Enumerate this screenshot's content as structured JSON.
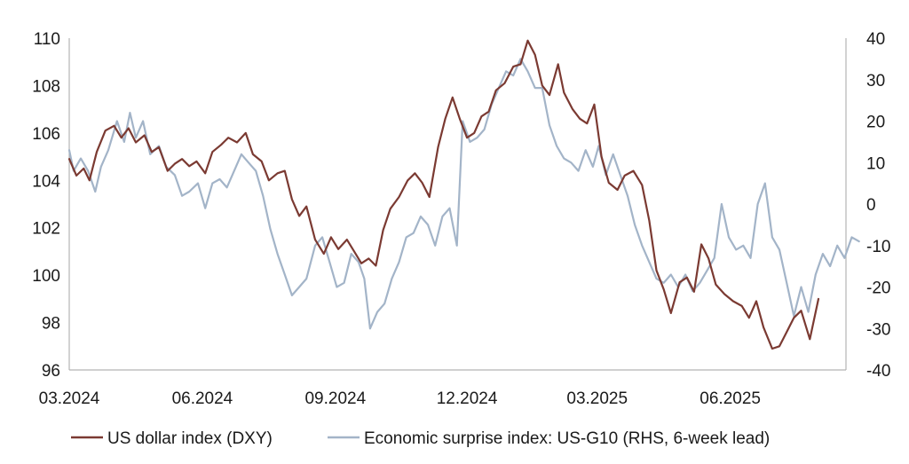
{
  "chart_data": {
    "type": "line",
    "title": "",
    "xlabel": "",
    "ylabel": "",
    "ylabel_right": "",
    "x_ticks": [
      "03.2024",
      "06.2024",
      "09.2024",
      "12.2024",
      "03.2025",
      "06.2025"
    ],
    "x_tick_dates": [
      "2024-03-01",
      "2024-06-01",
      "2024-09-01",
      "2024-12-01",
      "2025-03-01",
      "2025-06-01"
    ],
    "x_range": [
      "2024-03-01",
      "2025-08-20"
    ],
    "y_left_range": [
      96,
      110
    ],
    "y_left_ticks": [
      96,
      98,
      100,
      102,
      104,
      106,
      108,
      110
    ],
    "y_right_range": [
      -40,
      40
    ],
    "y_right_ticks": [
      -40,
      -30,
      -20,
      -10,
      0,
      10,
      20,
      30,
      40
    ],
    "grid": false,
    "legend_position": "bottom",
    "colors": {
      "dxy": "#7b3a32",
      "surprise": "#a3b4c8",
      "axis": "#b3b3b3"
    },
    "series": [
      {
        "name": "US dollar index (DXY)",
        "axis": "left",
        "color": "#7b3a32",
        "points": [
          [
            "2024-03-01",
            104.9
          ],
          [
            "2024-03-06",
            104.2
          ],
          [
            "2024-03-11",
            104.5
          ],
          [
            "2024-03-15",
            104.0
          ],
          [
            "2024-03-20",
            105.2
          ],
          [
            "2024-03-26",
            106.1
          ],
          [
            "2024-04-01",
            106.3
          ],
          [
            "2024-04-06",
            105.8
          ],
          [
            "2024-04-11",
            106.2
          ],
          [
            "2024-04-16",
            105.6
          ],
          [
            "2024-04-22",
            105.9
          ],
          [
            "2024-04-27",
            105.2
          ],
          [
            "2024-05-02",
            105.4
          ],
          [
            "2024-05-08",
            104.4
          ],
          [
            "2024-05-13",
            104.7
          ],
          [
            "2024-05-18",
            104.9
          ],
          [
            "2024-05-23",
            104.6
          ],
          [
            "2024-05-28",
            104.8
          ],
          [
            "2024-06-03",
            104.3
          ],
          [
            "2024-06-08",
            105.2
          ],
          [
            "2024-06-14",
            105.5
          ],
          [
            "2024-06-19",
            105.8
          ],
          [
            "2024-06-25",
            105.6
          ],
          [
            "2024-07-01",
            106.0
          ],
          [
            "2024-07-06",
            105.1
          ],
          [
            "2024-07-12",
            104.8
          ],
          [
            "2024-07-17",
            104.0
          ],
          [
            "2024-07-23",
            104.3
          ],
          [
            "2024-07-28",
            104.4
          ],
          [
            "2024-08-02",
            103.2
          ],
          [
            "2024-08-07",
            102.5
          ],
          [
            "2024-08-12",
            102.9
          ],
          [
            "2024-08-18",
            101.5
          ],
          [
            "2024-08-24",
            100.9
          ],
          [
            "2024-08-29",
            101.6
          ],
          [
            "2024-09-03",
            101.1
          ],
          [
            "2024-09-09",
            101.5
          ],
          [
            "2024-09-14",
            101.0
          ],
          [
            "2024-09-19",
            100.5
          ],
          [
            "2024-09-24",
            100.7
          ],
          [
            "2024-09-29",
            100.4
          ],
          [
            "2024-10-04",
            101.9
          ],
          [
            "2024-10-09",
            102.8
          ],
          [
            "2024-10-15",
            103.3
          ],
          [
            "2024-10-21",
            104.0
          ],
          [
            "2024-10-26",
            104.3
          ],
          [
            "2024-10-31",
            103.9
          ],
          [
            "2024-11-05",
            103.3
          ],
          [
            "2024-11-11",
            105.4
          ],
          [
            "2024-11-16",
            106.6
          ],
          [
            "2024-11-21",
            107.5
          ],
          [
            "2024-11-26",
            106.6
          ],
          [
            "2024-12-01",
            105.8
          ],
          [
            "2024-12-06",
            106.0
          ],
          [
            "2024-12-11",
            106.7
          ],
          [
            "2024-12-16",
            106.9
          ],
          [
            "2024-12-21",
            107.8
          ],
          [
            "2024-12-27",
            108.1
          ],
          [
            "2025-01-02",
            108.8
          ],
          [
            "2025-01-07",
            108.9
          ],
          [
            "2025-01-12",
            109.9
          ],
          [
            "2025-01-17",
            109.3
          ],
          [
            "2025-01-22",
            108.0
          ],
          [
            "2025-01-27",
            107.6
          ],
          [
            "2025-02-02",
            108.9
          ],
          [
            "2025-02-06",
            107.7
          ],
          [
            "2025-02-12",
            107.0
          ],
          [
            "2025-02-17",
            106.6
          ],
          [
            "2025-02-22",
            106.4
          ],
          [
            "2025-02-27",
            107.2
          ],
          [
            "2025-03-04",
            105.0
          ],
          [
            "2025-03-09",
            103.9
          ],
          [
            "2025-03-15",
            103.6
          ],
          [
            "2025-03-20",
            104.2
          ],
          [
            "2025-03-26",
            104.4
          ],
          [
            "2025-04-01",
            103.8
          ],
          [
            "2025-04-06",
            102.3
          ],
          [
            "2025-04-11",
            100.2
          ],
          [
            "2025-04-16",
            99.4
          ],
          [
            "2025-04-21",
            98.4
          ],
          [
            "2025-04-27",
            99.7
          ],
          [
            "2025-05-02",
            99.9
          ],
          [
            "2025-05-07",
            99.3
          ],
          [
            "2025-05-12",
            101.3
          ],
          [
            "2025-05-17",
            100.7
          ],
          [
            "2025-05-22",
            99.6
          ],
          [
            "2025-05-28",
            99.2
          ],
          [
            "2025-06-03",
            98.9
          ],
          [
            "2025-06-09",
            98.7
          ],
          [
            "2025-06-14",
            98.2
          ],
          [
            "2025-06-19",
            98.9
          ],
          [
            "2025-06-24",
            97.8
          ],
          [
            "2025-06-30",
            96.9
          ],
          [
            "2025-07-05",
            97.0
          ],
          [
            "2025-07-10",
            97.6
          ],
          [
            "2025-07-15",
            98.2
          ],
          [
            "2025-07-20",
            98.5
          ],
          [
            "2025-07-26",
            97.3
          ],
          [
            "2025-08-01",
            99.0
          ]
        ]
      },
      {
        "name": "Economic surprise index: US-G10 (RHS, 6-week lead)",
        "axis": "right",
        "color": "#a3b4c8",
        "points": [
          [
            "2024-03-01",
            13
          ],
          [
            "2024-03-04",
            8
          ],
          [
            "2024-03-09",
            11
          ],
          [
            "2024-03-14",
            8
          ],
          [
            "2024-03-19",
            3
          ],
          [
            "2024-03-23",
            9
          ],
          [
            "2024-03-28",
            13
          ],
          [
            "2024-04-03",
            20
          ],
          [
            "2024-04-08",
            15
          ],
          [
            "2024-04-12",
            22
          ],
          [
            "2024-04-16",
            16
          ],
          [
            "2024-04-21",
            20
          ],
          [
            "2024-04-26",
            12
          ],
          [
            "2024-05-02",
            14
          ],
          [
            "2024-05-07",
            9
          ],
          [
            "2024-05-13",
            7
          ],
          [
            "2024-05-18",
            2
          ],
          [
            "2024-05-23",
            3
          ],
          [
            "2024-05-29",
            5
          ],
          [
            "2024-06-03",
            -1
          ],
          [
            "2024-06-08",
            5
          ],
          [
            "2024-06-13",
            6
          ],
          [
            "2024-06-18",
            4
          ],
          [
            "2024-06-23",
            8
          ],
          [
            "2024-06-28",
            12
          ],
          [
            "2024-07-03",
            10
          ],
          [
            "2024-07-08",
            8
          ],
          [
            "2024-07-13",
            2
          ],
          [
            "2024-07-18",
            -6
          ],
          [
            "2024-07-23",
            -12
          ],
          [
            "2024-07-28",
            -17
          ],
          [
            "2024-08-02",
            -22
          ],
          [
            "2024-08-07",
            -20
          ],
          [
            "2024-08-12",
            -18
          ],
          [
            "2024-08-18",
            -10
          ],
          [
            "2024-08-23",
            -8
          ],
          [
            "2024-08-28",
            -14
          ],
          [
            "2024-09-02",
            -20
          ],
          [
            "2024-09-07",
            -19
          ],
          [
            "2024-09-12",
            -12
          ],
          [
            "2024-09-17",
            -14
          ],
          [
            "2024-09-21",
            -18
          ],
          [
            "2024-09-25",
            -30
          ],
          [
            "2024-09-30",
            -26
          ],
          [
            "2024-10-05",
            -24
          ],
          [
            "2024-10-10",
            -18
          ],
          [
            "2024-10-15",
            -14
          ],
          [
            "2024-10-20",
            -8
          ],
          [
            "2024-10-25",
            -7
          ],
          [
            "2024-10-30",
            -3
          ],
          [
            "2024-11-04",
            -5
          ],
          [
            "2024-11-09",
            -10
          ],
          [
            "2024-11-14",
            -3
          ],
          [
            "2024-11-19",
            -1
          ],
          [
            "2024-11-24",
            -10
          ],
          [
            "2024-11-28",
            20
          ],
          [
            "2024-12-03",
            15
          ],
          [
            "2024-12-08",
            16
          ],
          [
            "2024-12-13",
            18
          ],
          [
            "2024-12-18",
            24
          ],
          [
            "2024-12-23",
            28
          ],
          [
            "2024-12-28",
            32
          ],
          [
            "2025-01-02",
            31
          ],
          [
            "2025-01-07",
            35
          ],
          [
            "2025-01-12",
            32
          ],
          [
            "2025-01-17",
            28
          ],
          [
            "2025-01-22",
            28
          ],
          [
            "2025-01-27",
            19
          ],
          [
            "2025-02-01",
            14
          ],
          [
            "2025-02-06",
            11
          ],
          [
            "2025-02-11",
            10
          ],
          [
            "2025-02-16",
            8
          ],
          [
            "2025-02-21",
            13
          ],
          [
            "2025-02-26",
            9
          ],
          [
            "2025-03-02",
            14
          ],
          [
            "2025-03-07",
            7
          ],
          [
            "2025-03-12",
            12
          ],
          [
            "2025-03-17",
            7
          ],
          [
            "2025-03-22",
            2
          ],
          [
            "2025-03-27",
            -5
          ],
          [
            "2025-04-01",
            -10
          ],
          [
            "2025-04-06",
            -14
          ],
          [
            "2025-04-11",
            -18
          ],
          [
            "2025-04-16",
            -19
          ],
          [
            "2025-04-21",
            -17
          ],
          [
            "2025-04-26",
            -20
          ],
          [
            "2025-05-01",
            -17
          ],
          [
            "2025-05-06",
            -21
          ],
          [
            "2025-05-11",
            -19
          ],
          [
            "2025-05-16",
            -16
          ],
          [
            "2025-05-21",
            -13
          ],
          [
            "2025-05-26",
            0
          ],
          [
            "2025-05-31",
            -8
          ],
          [
            "2025-06-05",
            -11
          ],
          [
            "2025-06-10",
            -10
          ],
          [
            "2025-06-15",
            -13
          ],
          [
            "2025-06-20",
            0
          ],
          [
            "2025-06-25",
            5
          ],
          [
            "2025-06-30",
            -8
          ],
          [
            "2025-07-05",
            -11
          ],
          [
            "2025-07-10",
            -19
          ],
          [
            "2025-07-15",
            -27
          ],
          [
            "2025-07-20",
            -20
          ],
          [
            "2025-07-25",
            -26
          ],
          [
            "2025-07-30",
            -17
          ],
          [
            "2025-08-04",
            -12
          ],
          [
            "2025-08-09",
            -15
          ],
          [
            "2025-08-14",
            -10
          ],
          [
            "2025-08-19",
            -13
          ],
          [
            "2025-08-24",
            -8
          ],
          [
            "2025-08-29",
            -9
          ]
        ]
      }
    ]
  }
}
